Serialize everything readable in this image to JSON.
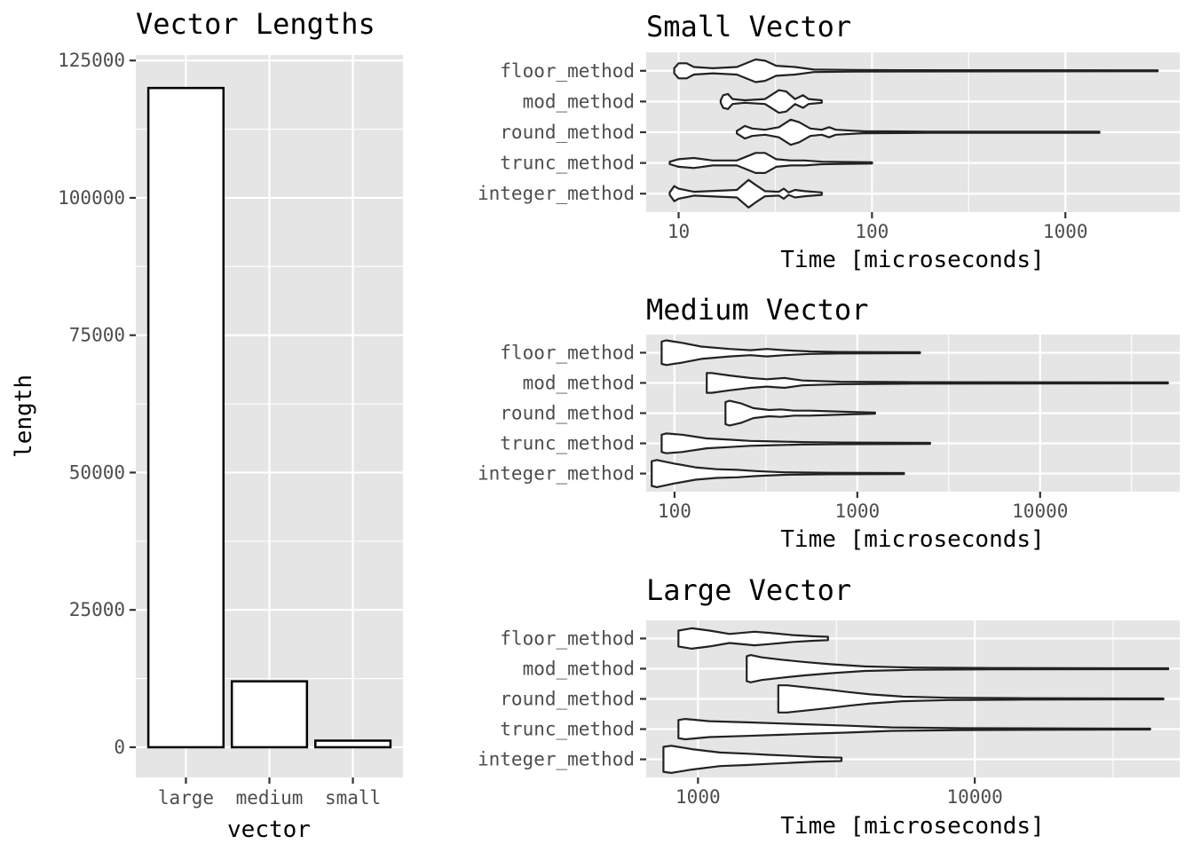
{
  "chart_data": [
    {
      "type": "bar",
      "title": "Vector Lengths",
      "xlabel": "vector",
      "ylabel": "length",
      "categories": [
        "large",
        "medium",
        "small"
      ],
      "values": [
        120000,
        12000,
        1200
      ],
      "ylim": [
        -5500,
        126000
      ],
      "yticks": [
        0,
        25000,
        50000,
        75000,
        100000,
        125000
      ],
      "ytick_labels": [
        "0",
        "25000",
        "50000",
        "75000",
        "100000",
        "125000"
      ],
      "fill_color": "#ffffff",
      "panel_color": "#e5e5e5"
    },
    {
      "type": "violin",
      "title": "Small Vector",
      "xlabel": "Time [microseconds]",
      "ylabel": "",
      "x_scale": "log10",
      "xlim": [
        6.8,
        3900
      ],
      "xticks": [
        10,
        100,
        1000
      ],
      "xtick_labels": [
        "10",
        "100",
        "1000"
      ],
      "minor_ticks": [
        31.6,
        316
      ],
      "categories": [
        "floor_method",
        "mod_method",
        "round_method",
        "trunc_method",
        "integer_method"
      ],
      "series": [
        {
          "name": "floor_method",
          "min": 9.5,
          "max": 3000,
          "density": [
            [
              9.5,
              2
            ],
            [
              10,
              6
            ],
            [
              11,
              6
            ],
            [
              12,
              3
            ],
            [
              15,
              2
            ],
            [
              20,
              3
            ],
            [
              25,
              9
            ],
            [
              28,
              8
            ],
            [
              32,
              4
            ],
            [
              40,
              3
            ],
            [
              50,
              1
            ],
            [
              80,
              0.6
            ],
            [
              150,
              0.5
            ],
            [
              3000,
              0.4
            ]
          ]
        },
        {
          "name": "mod_method",
          "min": 16.5,
          "max": 55,
          "density": [
            [
              16.5,
              1
            ],
            [
              17,
              5
            ],
            [
              18,
              6
            ],
            [
              19,
              2
            ],
            [
              22,
              1
            ],
            [
              28,
              2
            ],
            [
              33,
              9
            ],
            [
              36,
              8
            ],
            [
              40,
              2
            ],
            [
              44,
              5
            ],
            [
              47,
              2
            ],
            [
              55,
              1
            ]
          ]
        },
        {
          "name": "round_method",
          "min": 20,
          "max": 1500,
          "density": [
            [
              20,
              1
            ],
            [
              22,
              5
            ],
            [
              24,
              3
            ],
            [
              28,
              2
            ],
            [
              33,
              4
            ],
            [
              38,
              10
            ],
            [
              42,
              8
            ],
            [
              48,
              3
            ],
            [
              55,
              2
            ],
            [
              60,
              4
            ],
            [
              65,
              2
            ],
            [
              90,
              0.8
            ],
            [
              200,
              0.5
            ],
            [
              1500,
              0.4
            ]
          ]
        },
        {
          "name": "trunc_method",
          "min": 9,
          "max": 100,
          "density": [
            [
              9,
              1
            ],
            [
              10,
              3
            ],
            [
              12,
              4
            ],
            [
              15,
              2
            ],
            [
              20,
              2
            ],
            [
              25,
              8
            ],
            [
              28,
              8
            ],
            [
              32,
              3
            ],
            [
              38,
              2
            ],
            [
              45,
              2
            ],
            [
              55,
              1
            ],
            [
              100,
              0.5
            ]
          ]
        },
        {
          "name": "integer_method",
          "min": 9,
          "max": 55,
          "density": [
            [
              9,
              1
            ],
            [
              9.5,
              6
            ],
            [
              10,
              4
            ],
            [
              12,
              1.5
            ],
            [
              20,
              3
            ],
            [
              23,
              11
            ],
            [
              25,
              7
            ],
            [
              28,
              2
            ],
            [
              33,
              1.5
            ],
            [
              35,
              4
            ],
            [
              37,
              1
            ],
            [
              40,
              3
            ],
            [
              45,
              2
            ],
            [
              55,
              1
            ]
          ]
        }
      ]
    },
    {
      "type": "violin",
      "title": "Medium Vector",
      "xlabel": "Time [microseconds]",
      "ylabel": "",
      "x_scale": "log10",
      "xlim": [
        70,
        58000
      ],
      "xticks": [
        100,
        1000,
        10000
      ],
      "xtick_labels": [
        "100",
        "1000",
        "10000"
      ],
      "minor_ticks": [
        316,
        3162,
        31623
      ],
      "categories": [
        "floor_method",
        "mod_method",
        "round_method",
        "trunc_method",
        "integer_method"
      ],
      "series": [
        {
          "name": "floor_method",
          "min": 85,
          "max": 2200,
          "density": [
            [
              85,
              9
            ],
            [
              90,
              10
            ],
            [
              110,
              8
            ],
            [
              140,
              5
            ],
            [
              200,
              3
            ],
            [
              260,
              2
            ],
            [
              320,
              3
            ],
            [
              400,
              2
            ],
            [
              550,
              1
            ],
            [
              800,
              0.6
            ],
            [
              2200,
              0.4
            ]
          ]
        },
        {
          "name": "mod_method",
          "min": 150,
          "max": 50000,
          "density": [
            [
              150,
              8
            ],
            [
              160,
              8
            ],
            [
              200,
              6
            ],
            [
              260,
              4
            ],
            [
              320,
              3
            ],
            [
              400,
              4
            ],
            [
              500,
              2
            ],
            [
              800,
              1
            ],
            [
              2000,
              0.6
            ],
            [
              50000,
              0.4
            ]
          ]
        },
        {
          "name": "round_method",
          "min": 190,
          "max": 1250,
          "density": [
            [
              190,
              9
            ],
            [
              200,
              10
            ],
            [
              230,
              8
            ],
            [
              270,
              4
            ],
            [
              330,
              2.5
            ],
            [
              380,
              3
            ],
            [
              450,
              2
            ],
            [
              550,
              2
            ],
            [
              700,
              1.5
            ],
            [
              900,
              1
            ],
            [
              1250,
              0.5
            ]
          ]
        },
        {
          "name": "trunc_method",
          "min": 85,
          "max": 2500,
          "density": [
            [
              85,
              7
            ],
            [
              90,
              8
            ],
            [
              110,
              7
            ],
            [
              150,
              4
            ],
            [
              200,
              3
            ],
            [
              260,
              2
            ],
            [
              350,
              1.5
            ],
            [
              500,
              1
            ],
            [
              800,
              0.7
            ],
            [
              2500,
              0.4
            ]
          ]
        },
        {
          "name": "integer_method",
          "min": 75,
          "max": 1800,
          "density": [
            [
              75,
              10
            ],
            [
              80,
              11
            ],
            [
              100,
              8
            ],
            [
              130,
              5
            ],
            [
              170,
              3.5
            ],
            [
              220,
              3
            ],
            [
              280,
              2
            ],
            [
              400,
              1
            ],
            [
              700,
              0.6
            ],
            [
              1800,
              0.4
            ]
          ]
        }
      ]
    },
    {
      "type": "violin",
      "title": "Large Vector",
      "xlabel": "Time [microseconds]",
      "ylabel": "",
      "x_scale": "log10",
      "xlim": [
        650,
        55000
      ],
      "xticks": [
        1000,
        10000
      ],
      "xtick_labels": [
        "1000",
        "10000"
      ],
      "minor_ticks": [
        3162,
        31623
      ],
      "categories": [
        "floor_method",
        "mod_method",
        "round_method",
        "trunc_method",
        "integer_method"
      ],
      "series": [
        {
          "name": "floor_method",
          "min": 850,
          "max": 2950,
          "density": [
            [
              850,
              7
            ],
            [
              950,
              9
            ],
            [
              1100,
              7
            ],
            [
              1300,
              4
            ],
            [
              1600,
              6
            ],
            [
              1800,
              5
            ],
            [
              2200,
              3
            ],
            [
              2600,
              2
            ],
            [
              2950,
              1.5
            ]
          ]
        },
        {
          "name": "mod_method",
          "min": 1500,
          "max": 50000,
          "density": [
            [
              1500,
              11
            ],
            [
              1550,
              12
            ],
            [
              1700,
              10
            ],
            [
              2000,
              8
            ],
            [
              2400,
              6
            ],
            [
              3000,
              4
            ],
            [
              4000,
              2
            ],
            [
              6000,
              1
            ],
            [
              12000,
              0.6
            ],
            [
              50000,
              0.4
            ]
          ]
        },
        {
          "name": "round_method",
          "min": 1950,
          "max": 48000,
          "density": [
            [
              1950,
              12
            ],
            [
              2100,
              12
            ],
            [
              2500,
              10
            ],
            [
              3000,
              8
            ],
            [
              3500,
              6
            ],
            [
              4200,
              4
            ],
            [
              5500,
              2
            ],
            [
              8000,
              1
            ],
            [
              15000,
              0.6
            ],
            [
              48000,
              0.4
            ]
          ]
        },
        {
          "name": "trunc_method",
          "min": 850,
          "max": 43000,
          "density": [
            [
              850,
              8
            ],
            [
              900,
              9
            ],
            [
              1100,
              7
            ],
            [
              1500,
              6
            ],
            [
              2000,
              5
            ],
            [
              2600,
              4
            ],
            [
              3500,
              3
            ],
            [
              5000,
              1.5
            ],
            [
              9000,
              0.8
            ],
            [
              43000,
              0.4
            ]
          ]
        },
        {
          "name": "integer_method",
          "min": 750,
          "max": 3300,
          "density": [
            [
              750,
              11
            ],
            [
              800,
              12
            ],
            [
              950,
              9
            ],
            [
              1200,
              6
            ],
            [
              1500,
              5
            ],
            [
              1800,
              4
            ],
            [
              2200,
              3
            ],
            [
              2700,
              2
            ],
            [
              3300,
              1.5
            ]
          ]
        }
      ]
    }
  ]
}
